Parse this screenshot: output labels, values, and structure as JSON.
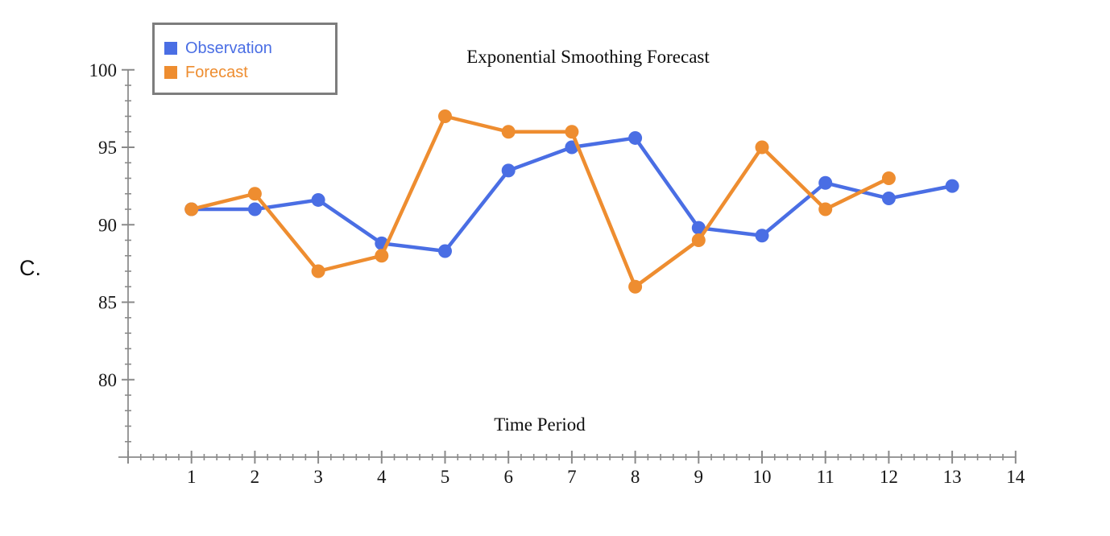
{
  "page_label": "C.",
  "colors": {
    "observation": "#4a6ee4",
    "forecast": "#ee8d30",
    "axis": "#999999",
    "tick": "#8a8a8a",
    "tick_label": "#161616",
    "legend_border": "#7d7d7d"
  },
  "legend": {
    "position": "top-left",
    "items": [
      {
        "label": "Observation",
        "color": "#4a6ee4"
      },
      {
        "label": "Forecast",
        "color": "#ee8d30"
      }
    ]
  },
  "chart_data": {
    "type": "line",
    "title": "Exponential Smoothing Forecast",
    "xlabel": "Time Period",
    "ylabel": "",
    "xlim": [
      0,
      14
    ],
    "ylim": [
      75,
      100
    ],
    "x_major_ticks": [
      1,
      2,
      3,
      4,
      5,
      6,
      7,
      8,
      9,
      10,
      11,
      12,
      13,
      14
    ],
    "y_major_ticks": [
      80,
      85,
      90,
      95,
      100
    ],
    "x_minor_step": 0.2,
    "y_minor_step": 1,
    "grid": false,
    "legend_position": "top-left",
    "series": [
      {
        "name": "Observation",
        "color": "#4a6ee4",
        "x": [
          1,
          2,
          3,
          4,
          5,
          6,
          7,
          8,
          9,
          10,
          11,
          12,
          13
        ],
        "values": [
          91,
          91,
          91.6,
          88.8,
          88.3,
          93.5,
          95.0,
          95.6,
          89.8,
          89.3,
          92.7,
          91.7,
          92.5
        ]
      },
      {
        "name": "Forecast",
        "color": "#ee8d30",
        "x": [
          1,
          2,
          3,
          4,
          5,
          6,
          7,
          8,
          9,
          10,
          11,
          12
        ],
        "values": [
          91,
          92,
          87,
          88,
          97,
          96,
          96,
          86,
          89,
          95,
          91,
          93
        ]
      }
    ]
  }
}
